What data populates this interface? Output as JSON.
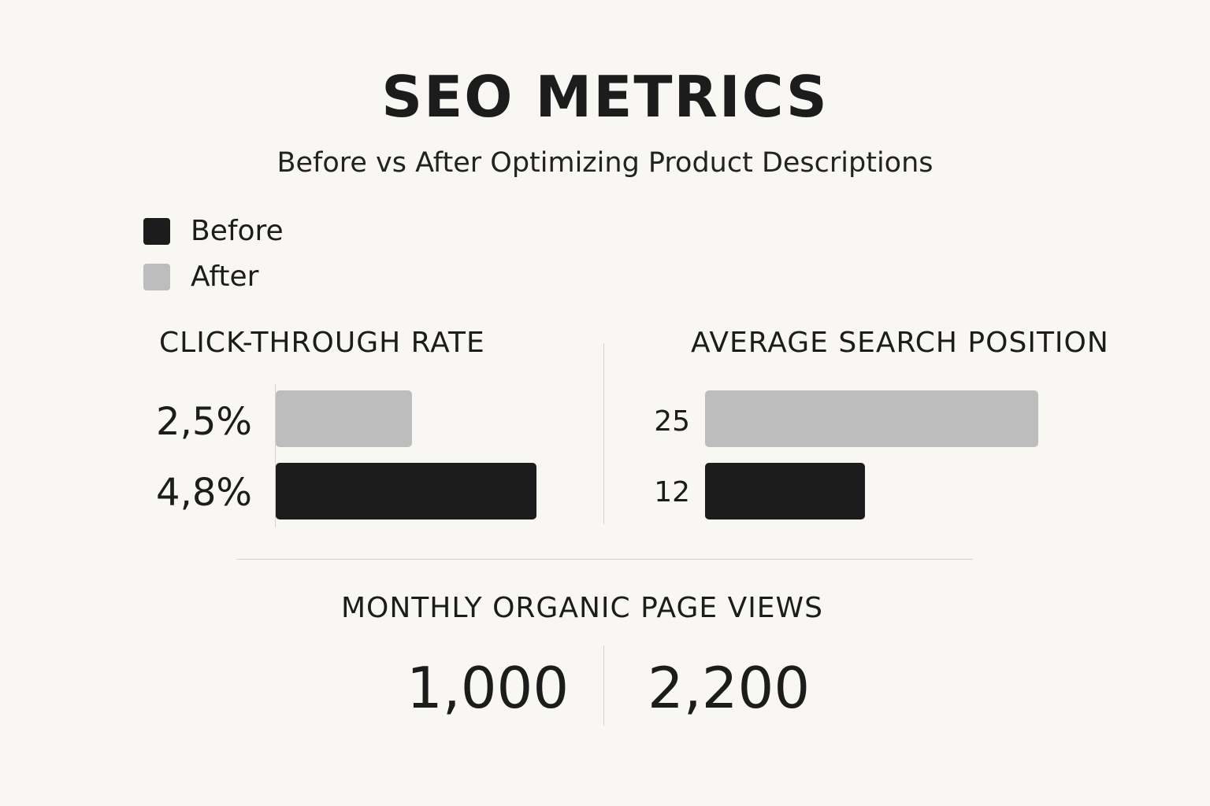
{
  "title": "SEO METRICS",
  "subtitle": "Before vs After Optimizing Product Descriptions",
  "colors": {
    "before": "#1c1c1c",
    "after": "#bdbdbd",
    "background": "#f8f7f4"
  },
  "legend": [
    {
      "label": "Before",
      "color": "#1c1c1c"
    },
    {
      "label": "After",
      "color": "#bdbdbd"
    }
  ],
  "chart_data": [
    {
      "type": "bar",
      "orientation": "horizontal",
      "title": "CLICK-THROUGH RATE",
      "bars": [
        {
          "label": "2,5%",
          "value": 2.5,
          "series": "After"
        },
        {
          "label": "4,8%",
          "value": 4.8,
          "series": "Before"
        }
      ],
      "xlim": [
        0,
        6.0
      ]
    },
    {
      "type": "bar",
      "orientation": "horizontal",
      "title": "AVERAGE SEARCH POSITION",
      "bars": [
        {
          "label": "25",
          "value": 25,
          "series": "After"
        },
        {
          "label": "12",
          "value": 12,
          "series": "Before"
        }
      ],
      "xlim": [
        0,
        25.6
      ]
    },
    {
      "type": "table",
      "title": "MONTHLY ORGANIC PAGE VIEWS",
      "values": [
        {
          "label": "1,000",
          "value": 1000
        },
        {
          "label": "2,200",
          "value": 2200
        }
      ]
    }
  ]
}
